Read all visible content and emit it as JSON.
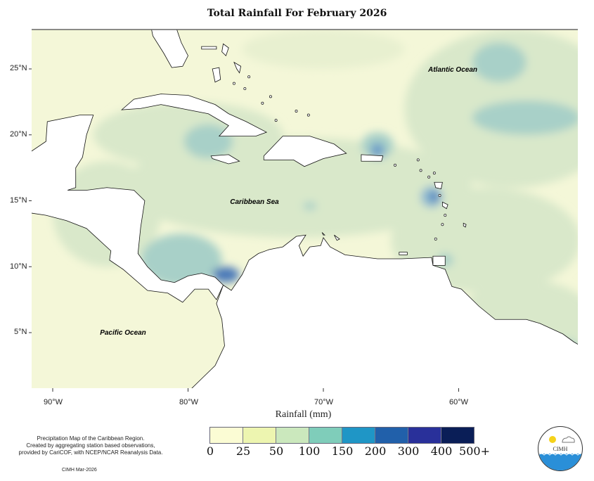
{
  "title": "Total Rainfall For February 2026",
  "map": {
    "labels": {
      "atlantic": "Atlantic Ocean",
      "caribbean": "Caribbean Sea",
      "pacific": "Pacific Ocean"
    },
    "lat_ticks": [
      "25°N",
      "20°N",
      "15°N",
      "10°N",
      "5°N"
    ],
    "lon_ticks": [
      "90°W",
      "80°W",
      "70°W",
      "60°W"
    ]
  },
  "legend": {
    "title": "Rainfall (mm)",
    "breaks": [
      "0",
      "25",
      "50",
      "100",
      "150",
      "200",
      "300",
      "400",
      "500+"
    ],
    "colors": [
      "#fbfcd4",
      "#edf5b0",
      "#cbe8bd",
      "#7fcdba",
      "#1f96c6",
      "#2160aa",
      "#29309a",
      "#0a1e57"
    ]
  },
  "notes": {
    "line1": "Precipitation Map of the Caribbean Region.",
    "line2": "Created by aggregating station based observations,",
    "line3": "provided by CariCOF, with NCEP/NCAR Reanalysis Data.",
    "credit": "CIMH Mar-2026"
  },
  "logo": {
    "text": "CIMH"
  }
}
